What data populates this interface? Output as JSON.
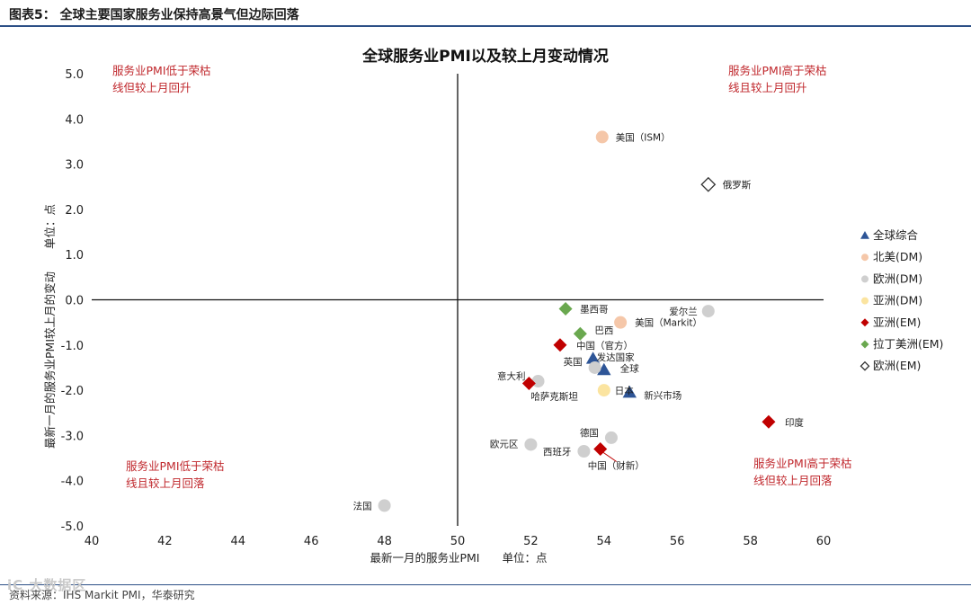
{
  "figure_header": "图表5：  全球主要国家服务业保持高景气但边际回落",
  "source": "资料来源：IHS Markit PMI，华泰研究",
  "watermark": "iC 大数据区",
  "chart_data": {
    "type": "scatter",
    "title": "全球服务业PMI以及较上月变动情况",
    "xlabel": "最新一月的服务业PMI　　单位：点",
    "ylabel": "最新一月的服务业PMI较上月的变动　　单位：点",
    "xlim": [
      40,
      60
    ],
    "ylim": [
      -5,
      5
    ],
    "x_ticks": [
      "40",
      "42",
      "44",
      "46",
      "48",
      "50",
      "52",
      "54",
      "56",
      "58",
      "60"
    ],
    "y_ticks": [
      "5.0",
      "4.0",
      "3.0",
      "2.0",
      "1.0",
      "0.0",
      "-1.0",
      "-2.0",
      "-3.0",
      "-4.0",
      "-5.0"
    ],
    "quadrant_labels": {
      "top_left": [
        "服务业PMI低于荣枯",
        "线但较上月回升"
      ],
      "top_right": [
        "服务业PMI高于荣枯",
        "线且较上月回升"
      ],
      "bottom_left": [
        "服务业PMI低于荣枯",
        "线且较上月回落"
      ],
      "bottom_right": [
        "服务业PMI高于荣枯",
        "线但较上月回落"
      ]
    },
    "series": [
      {
        "name": "全球综合",
        "color": "#2e5597",
        "marker": "triangle",
        "points": [
          {
            "label": "全球",
            "x": 54.0,
            "y": -1.55
          },
          {
            "label": "发达国家",
            "x": 53.7,
            "y": -1.3
          },
          {
            "label": "新兴市场",
            "x": 54.7,
            "y": -2.05
          }
        ]
      },
      {
        "name": "北美(DM)",
        "color": "#f5c7a9",
        "marker": "circle",
        "points": [
          {
            "label": "美国（ISM）",
            "x": 53.95,
            "y": 3.6
          },
          {
            "label": "美国（Markit）",
            "x": 54.45,
            "y": -0.5
          }
        ]
      },
      {
        "name": "欧洲(DM)",
        "color": "#cfcfcf",
        "marker": "circle",
        "points": [
          {
            "label": "爱尔兰",
            "x": 56.85,
            "y": -0.25
          },
          {
            "label": "英国",
            "x": 53.75,
            "y": -1.5
          },
          {
            "label": "意大利",
            "x": 52.2,
            "y": -1.8
          },
          {
            "label": "德国",
            "x": 54.2,
            "y": -3.05
          },
          {
            "label": "欧元区",
            "x": 52.0,
            "y": -3.2
          },
          {
            "label": "西班牙",
            "x": 53.45,
            "y": -3.35
          },
          {
            "label": "法国",
            "x": 48.0,
            "y": -4.55
          }
        ]
      },
      {
        "name": "亚洲(DM)",
        "color": "#fbe4a0",
        "marker": "circle",
        "points": [
          {
            "label": "日本",
            "x": 54.0,
            "y": -2.0
          }
        ]
      },
      {
        "name": "亚洲(EM)",
        "color": "#c00000",
        "marker": "diamond",
        "points": [
          {
            "label": "中国（官方）",
            "x": 52.8,
            "y": -1.0
          },
          {
            "label": "哈萨克斯坦",
            "x": 51.95,
            "y": -1.85
          },
          {
            "label": "中国（财新）",
            "x": 53.9,
            "y": -3.3
          },
          {
            "label": "印度",
            "x": 58.5,
            "y": -2.7
          }
        ]
      },
      {
        "name": "拉丁美洲(EM)",
        "color": "#6aa84f",
        "marker": "diamond",
        "points": [
          {
            "label": "墨西哥",
            "x": 52.95,
            "y": -0.2
          },
          {
            "label": "巴西",
            "x": 53.35,
            "y": -0.75
          }
        ]
      },
      {
        "name": "欧洲(EM)",
        "color": "#333333",
        "marker": "diamond-open",
        "points": [
          {
            "label": "俄罗斯",
            "x": 56.85,
            "y": 2.55
          }
        ]
      }
    ]
  }
}
